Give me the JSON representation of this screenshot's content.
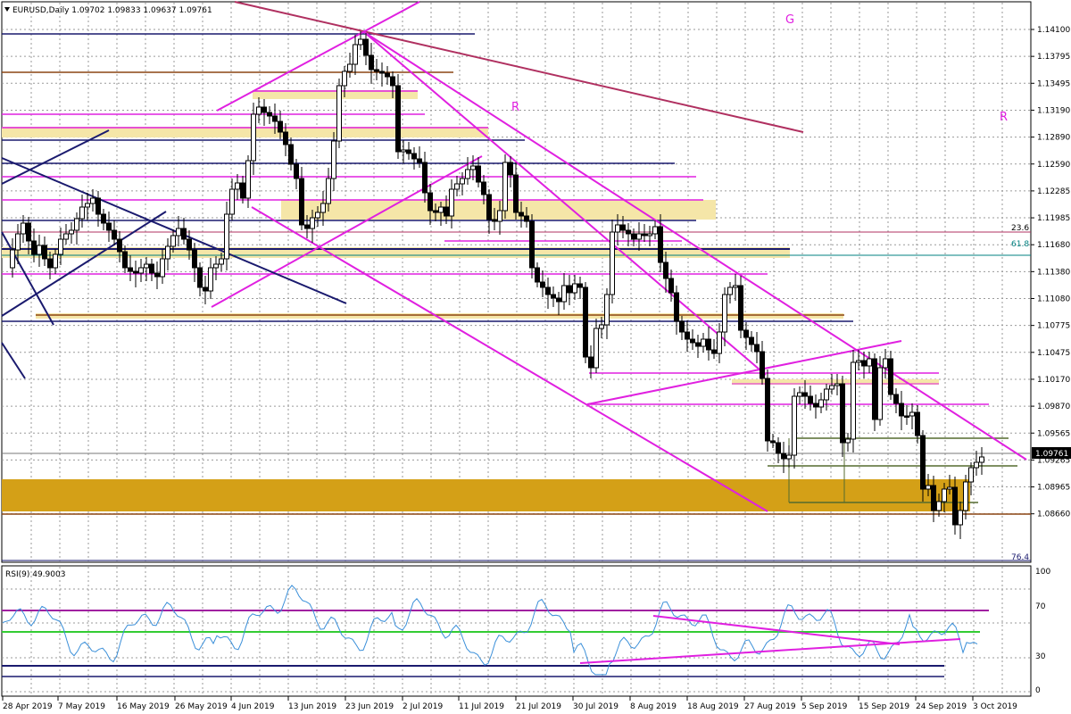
{
  "header": {
    "symbol_line": "EURUSD,Daily  1.09702  1.09833  1.09637  1.09761"
  },
  "price_axis": {
    "ticks": [
      "1.14100",
      "1.13795",
      "1.13495",
      "1.13190",
      "1.12890",
      "1.12590",
      "1.12285",
      "1.11985",
      "1.11680",
      "1.11380",
      "1.11080",
      "1.10775",
      "1.10475",
      "1.10170",
      "1.09870",
      "1.09565",
      "1.09265",
      "1.08965",
      "1.08660"
    ],
    "current_price": "1.09761"
  },
  "fib_labels": {
    "f236": "23.6",
    "f618": "61.8",
    "f764": "76.4"
  },
  "pattern_labels": {
    "g": "G",
    "r1": "R",
    "r2": "R"
  },
  "rsi": {
    "title": "RSI(9) 49.9003",
    "levels": [
      "100",
      "70",
      "30",
      "0"
    ]
  },
  "date_axis": {
    "ticks": [
      "28 Apr 2019",
      "7 May 2019",
      "16 May 2019",
      "26 May 2019",
      "4 Jun 2019",
      "13 Jun 2019",
      "23 Jun 2019",
      "2 Jul 2019",
      "11 Jul 2019",
      "21 Jul 2019",
      "30 Jul 2019",
      "8 Aug 2019",
      "18 Aug 2019",
      "27 Aug 2019",
      "5 Sep 2019",
      "15 Sep 2019",
      "24 Sep 2019",
      "3 Oct 2019"
    ]
  },
  "colors": {
    "magenta": "#e020e0",
    "navy": "#1a1a6e",
    "brown": "#8b4513",
    "zone_light": "#f5e6a8",
    "zone_dark": "#d4a017",
    "rsi_line": "#3a8fd9",
    "green": "#33cc33",
    "olive": "#556b2f"
  }
}
